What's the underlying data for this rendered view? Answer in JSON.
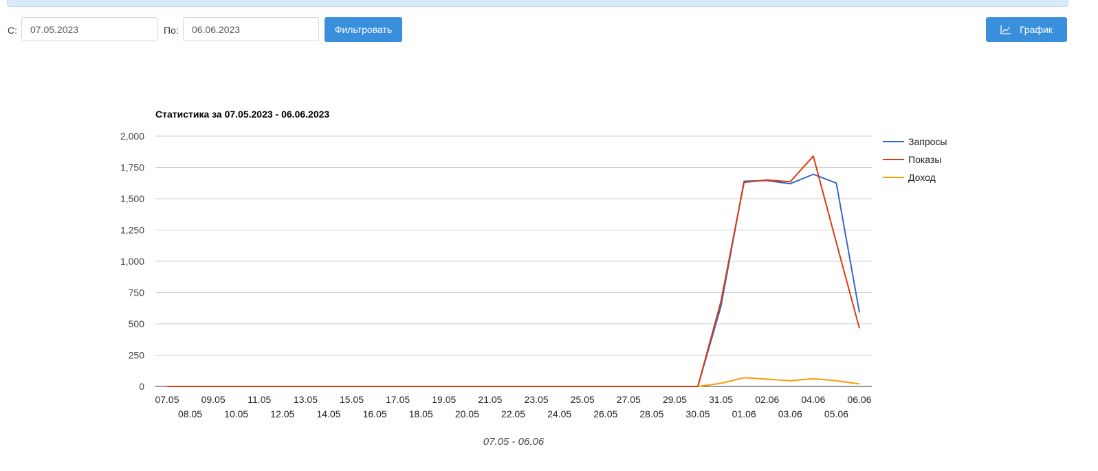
{
  "filter": {
    "from_label": "С:",
    "from_value": "07.05.2023",
    "to_label": "По:",
    "to_value": "06.06.2023",
    "filter_button": "Фильтровать",
    "graph_button": "График",
    "accent_color": "#3a8fdc"
  },
  "chart_data": {
    "type": "line",
    "title": "Статистика за 07.05.2023 - 06.06.2023",
    "xlabel": "07.05 - 06.06",
    "ylabel": "",
    "ylim": [
      0,
      2000
    ],
    "yticks": [
      "0",
      "250",
      "500",
      "750",
      "1,000",
      "1,250",
      "1,500",
      "1,750",
      "2,000"
    ],
    "grid": true,
    "legend_position": "right",
    "categories": [
      "07.05",
      "08.05",
      "09.05",
      "10.05",
      "11.05",
      "12.05",
      "13.05",
      "14.05",
      "15.05",
      "16.05",
      "17.05",
      "18.05",
      "19.05",
      "20.05",
      "21.05",
      "22.05",
      "23.05",
      "24.05",
      "25.05",
      "26.05",
      "27.05",
      "28.05",
      "29.05",
      "30.05",
      "31.05",
      "01.06",
      "02.06",
      "03.06",
      "04.06",
      "05.06",
      "06.06"
    ],
    "series": [
      {
        "name": "Запросы",
        "color": "#3366cc",
        "values": [
          0,
          0,
          0,
          0,
          0,
          0,
          0,
          0,
          0,
          0,
          0,
          0,
          0,
          0,
          0,
          0,
          0,
          0,
          0,
          0,
          0,
          0,
          0,
          0,
          640,
          1640,
          1645,
          1620,
          1695,
          1625,
          590
        ]
      },
      {
        "name": "Показы",
        "color": "#dc3912",
        "values": [
          0,
          0,
          0,
          0,
          0,
          0,
          0,
          0,
          0,
          0,
          0,
          0,
          0,
          0,
          0,
          0,
          0,
          0,
          0,
          0,
          0,
          0,
          0,
          0,
          680,
          1630,
          1650,
          1635,
          1840,
          1150,
          465
        ]
      },
      {
        "name": "Доход",
        "color": "#ff9900",
        "values": [
          0,
          0,
          0,
          0,
          0,
          0,
          0,
          0,
          0,
          0,
          0,
          0,
          0,
          0,
          0,
          0,
          0,
          0,
          0,
          0,
          0,
          0,
          0,
          0,
          25,
          70,
          58,
          45,
          62,
          45,
          20
        ]
      }
    ]
  }
}
